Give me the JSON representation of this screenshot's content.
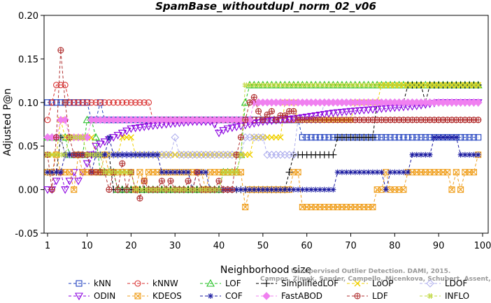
{
  "chart_data": {
    "type": "line",
    "title": "SpamBase_withoutdupl_norm_02_v06",
    "xlabel": "Neighborhood size",
    "ylabel": "Adjusted P@n",
    "xlim": [
      1,
      100
    ],
    "ylim": [
      -0.05,
      0.2
    ],
    "xticks": [
      "1",
      "10",
      "20",
      "30",
      "40",
      "50",
      "60",
      "70",
      "80",
      "90",
      "100"
    ],
    "yticks": [
      "-0.05",
      "0.00",
      "0.05",
      "0.10",
      "0.15",
      "0.20"
    ],
    "grid": false,
    "legend_position": "bottom",
    "watermark": [
      "Unsupervised Outlier Detection. DAMI, 2015.",
      "Campos, Zimek, Sander, Campello, Micenkova, Schubert, Assent, Houle"
    ],
    "series": [
      {
        "name": "kNN",
        "color": "#1f3fbf",
        "marker": "square",
        "points": [
          [
            1,
            0.1
          ],
          [
            10,
            0.1
          ],
          [
            11,
            0.08
          ],
          [
            12,
            0.08
          ],
          [
            13,
            0.1
          ],
          [
            14,
            0.08
          ],
          [
            58,
            0.08
          ],
          [
            59,
            0.06
          ],
          [
            99,
            0.06
          ]
        ]
      },
      {
        "name": "kNNW",
        "color": "#d93030",
        "marker": "circle",
        "points": [
          [
            1,
            0.08
          ],
          [
            2,
            0.1
          ],
          [
            3,
            0.12
          ],
          [
            4,
            0.12
          ],
          [
            5,
            0.12
          ],
          [
            6,
            0.1
          ],
          [
            24,
            0.1
          ],
          [
            25,
            0.08
          ],
          [
            99,
            0.08
          ]
        ]
      },
      {
        "name": "LOF",
        "color": "#22c022",
        "marker": "triangle-up",
        "points": [
          [
            1,
            0.06
          ],
          [
            5,
            0.06
          ],
          [
            6,
            0.04
          ],
          [
            9,
            0.04
          ],
          [
            10,
            0.08
          ],
          [
            12,
            0.06
          ],
          [
            13,
            0.02
          ],
          [
            16,
            0.02
          ],
          [
            17,
            0.0
          ],
          [
            40,
            0.0
          ],
          [
            41,
            0.02
          ],
          [
            44,
            0.02
          ],
          [
            45,
            0.04
          ],
          [
            46,
            0.1
          ],
          [
            47,
            0.12
          ],
          [
            99,
            0.12
          ]
        ]
      },
      {
        "name": "SimplifiedLOF",
        "color": "#000000",
        "marker": "plus",
        "points": [
          [
            1,
            0.02
          ],
          [
            3,
            0.02
          ],
          [
            4,
            0.06
          ],
          [
            5,
            0.04
          ],
          [
            15,
            0.04
          ],
          [
            16,
            0.0
          ],
          [
            55,
            0.0
          ],
          [
            56,
            0.02
          ],
          [
            57,
            0.04
          ],
          [
            66,
            0.04
          ],
          [
            67,
            0.06
          ],
          [
            68,
            0.06
          ],
          [
            75,
            0.06
          ],
          [
            76,
            0.1
          ],
          [
            82,
            0.1
          ],
          [
            83,
            0.12
          ],
          [
            86,
            0.12
          ],
          [
            87,
            0.1
          ],
          [
            88,
            0.12
          ],
          [
            99,
            0.12
          ]
        ]
      },
      {
        "name": "LoOP",
        "color": "#f0d000",
        "marker": "x",
        "points": [
          [
            1,
            0.04
          ],
          [
            3,
            0.04
          ],
          [
            4,
            0.08
          ],
          [
            5,
            0.06
          ],
          [
            11,
            0.06
          ],
          [
            12,
            0.04
          ],
          [
            17,
            0.04
          ],
          [
            18,
            0.06
          ],
          [
            20,
            0.06
          ],
          [
            21,
            0.04
          ],
          [
            47,
            0.04
          ],
          [
            48,
            0.06
          ],
          [
            54,
            0.06
          ],
          [
            55,
            0.1
          ],
          [
            57,
            0.1
          ],
          [
            58,
            0.08
          ],
          [
            70,
            0.08
          ],
          [
            71,
            0.1
          ],
          [
            76,
            0.1
          ],
          [
            77,
            0.12
          ],
          [
            99,
            0.12
          ]
        ]
      },
      {
        "name": "LDOF",
        "color": "#b0b0ee",
        "marker": "diamond",
        "points": [
          [
            1,
            0.06
          ],
          [
            4,
            0.06
          ],
          [
            5,
            0.04
          ],
          [
            29,
            0.04
          ],
          [
            30,
            0.06
          ],
          [
            31,
            0.04
          ],
          [
            45,
            0.04
          ],
          [
            46,
            0.06
          ],
          [
            50,
            0.06
          ],
          [
            51,
            0.04
          ],
          [
            57,
            0.04
          ],
          [
            58,
            0.08
          ],
          [
            63,
            0.08
          ],
          [
            64,
            0.1
          ],
          [
            99,
            0.1
          ]
        ]
      },
      {
        "name": "ODIN",
        "color": "#8b00e0",
        "marker": "triangle-down",
        "points": [
          [
            1,
            0.0
          ],
          [
            2,
            0.0
          ],
          [
            3,
            0.01
          ],
          [
            4,
            0.02
          ],
          [
            5,
            0.0
          ],
          [
            6,
            0.01
          ],
          [
            7,
            0.02
          ],
          [
            8,
            0.01
          ],
          [
            9,
            0.02
          ],
          [
            10,
            0.03
          ],
          [
            11,
            0.04
          ],
          [
            12,
            0.05
          ],
          [
            14,
            0.055
          ],
          [
            16,
            0.06
          ],
          [
            18,
            0.065
          ],
          [
            20,
            0.07
          ],
          [
            23,
            0.072
          ],
          [
            26,
            0.074
          ],
          [
            30,
            0.076
          ],
          [
            34,
            0.078
          ],
          [
            38,
            0.078
          ],
          [
            39,
            0.075
          ],
          [
            40,
            0.065
          ],
          [
            41,
            0.068
          ],
          [
            42,
            0.07
          ],
          [
            44,
            0.072
          ],
          [
            46,
            0.074
          ],
          [
            48,
            0.076
          ],
          [
            50,
            0.078
          ],
          [
            54,
            0.08
          ],
          [
            58,
            0.082
          ],
          [
            62,
            0.085
          ],
          [
            66,
            0.088
          ],
          [
            70,
            0.09
          ],
          [
            75,
            0.092
          ],
          [
            80,
            0.094
          ],
          [
            85,
            0.096
          ],
          [
            90,
            0.1
          ],
          [
            99,
            0.1
          ]
        ]
      },
      {
        "name": "KDEOS",
        "color": "#f0a020",
        "marker": "box-x",
        "points": [
          [
            1,
            0.02
          ],
          [
            2,
            0.02
          ],
          [
            3,
            0.04
          ],
          [
            4,
            0.02
          ],
          [
            6,
            0.02
          ],
          [
            7,
            0.0
          ],
          [
            8,
            0.04
          ],
          [
            9,
            0.02
          ],
          [
            12,
            0.02
          ],
          [
            13,
            0.02
          ],
          [
            14,
            0.04
          ],
          [
            15,
            0.02
          ],
          [
            20,
            0.02
          ],
          [
            21,
            0.0
          ],
          [
            22,
            0.02
          ],
          [
            23,
            0.01
          ],
          [
            24,
            0.02
          ],
          [
            36,
            0.02
          ],
          [
            37,
            0.0
          ],
          [
            38,
            0.02
          ],
          [
            45,
            0.02
          ],
          [
            46,
            -0.02
          ],
          [
            47,
            0.0
          ],
          [
            48,
            0.0
          ],
          [
            56,
            0.0
          ],
          [
            57,
            0.02
          ],
          [
            58,
            0.02
          ],
          [
            59,
            -0.02
          ],
          [
            75,
            -0.02
          ],
          [
            76,
            0.0
          ],
          [
            77,
            0.0
          ],
          [
            78,
            0.02
          ],
          [
            79,
            0.0
          ],
          [
            82,
            0.0
          ],
          [
            83,
            0.02
          ],
          [
            92,
            0.02
          ],
          [
            93,
            0.0
          ],
          [
            94,
            0.02
          ],
          [
            95,
            0.0
          ],
          [
            96,
            0.02
          ],
          [
            98,
            0.02
          ],
          [
            99,
            0.04
          ]
        ]
      },
      {
        "name": "COF",
        "color": "#1a1aa0",
        "marker": "asterisk",
        "points": [
          [
            1,
            0.02
          ],
          [
            4,
            0.02
          ],
          [
            5,
            0.04
          ],
          [
            10,
            0.04
          ],
          [
            11,
            0.02
          ],
          [
            12,
            0.04
          ],
          [
            14,
            0.04
          ],
          [
            15,
            0.06
          ],
          [
            16,
            0.04
          ],
          [
            26,
            0.04
          ],
          [
            27,
            0.02
          ],
          [
            33,
            0.02
          ],
          [
            34,
            0.0
          ],
          [
            35,
            0.02
          ],
          [
            37,
            0.02
          ],
          [
            38,
            0.0
          ],
          [
            66,
            0.0
          ],
          [
            67,
            0.02
          ],
          [
            77,
            0.02
          ],
          [
            78,
            0.0
          ],
          [
            79,
            0.02
          ],
          [
            83,
            0.02
          ],
          [
            84,
            0.04
          ],
          [
            88,
            0.04
          ],
          [
            89,
            0.06
          ],
          [
            94,
            0.06
          ],
          [
            95,
            0.04
          ],
          [
            99,
            0.04
          ]
        ]
      },
      {
        "name": "FastABOD",
        "color": "#f080f0",
        "marker": "diamond-filled",
        "points": [
          [
            1,
            0.06
          ],
          [
            3,
            0.06
          ],
          [
            4,
            0.08
          ],
          [
            5,
            0.08
          ],
          [
            6,
            0.06
          ],
          [
            10,
            0.06
          ],
          [
            11,
            0.08
          ],
          [
            47,
            0.08
          ],
          [
            48,
            0.1
          ],
          [
            99,
            0.1
          ]
        ]
      },
      {
        "name": "LDF",
        "color": "#b03030",
        "marker": "circle-plus",
        "points": [
          [
            1,
            0.04
          ],
          [
            2,
            0.0
          ],
          [
            3,
            0.06
          ],
          [
            4,
            0.16
          ],
          [
            5,
            0.1
          ],
          [
            6,
            0.06
          ],
          [
            7,
            0.04
          ],
          [
            10,
            0.04
          ],
          [
            11,
            0.02
          ],
          [
            14,
            0.02
          ],
          [
            15,
            0.0
          ],
          [
            16,
            0.02
          ],
          [
            17,
            0.0
          ],
          [
            18,
            0.03
          ],
          [
            19,
            0.0
          ],
          [
            20,
            0.02
          ],
          [
            21,
            0.0
          ],
          [
            22,
            -0.01
          ],
          [
            23,
            0.01
          ],
          [
            24,
            0.0
          ],
          [
            25,
            0.0
          ],
          [
            26,
            0.0
          ],
          [
            27,
            0.01
          ],
          [
            28,
            0.0
          ],
          [
            29,
            0.01
          ],
          [
            30,
            0.0
          ],
          [
            31,
            0.0
          ],
          [
            32,
            0.0
          ],
          [
            33,
            0.01
          ],
          [
            34,
            0.0
          ],
          [
            35,
            0.02
          ],
          [
            36,
            0.0
          ],
          [
            37,
            0.0
          ],
          [
            38,
            0.0
          ],
          [
            39,
            0.0
          ],
          [
            40,
            0.01
          ],
          [
            41,
            0.0
          ],
          [
            42,
            0.0
          ],
          [
            43,
            0.0
          ],
          [
            44,
            0.04
          ],
          [
            45,
            0.06
          ],
          [
            46,
            0.08
          ],
          [
            47,
            0.1
          ],
          [
            48,
            0.106
          ],
          [
            49,
            0.09
          ],
          [
            50,
            0.08
          ],
          [
            51,
            0.086
          ],
          [
            52,
            0.09
          ],
          [
            53,
            0.08
          ],
          [
            54,
            0.085
          ],
          [
            55,
            0.085
          ],
          [
            56,
            0.09
          ],
          [
            57,
            0.09
          ],
          [
            58,
            0.08
          ],
          [
            99,
            0.08
          ]
        ]
      },
      {
        "name": "INFLO",
        "color": "#c0d840",
        "marker": "hash",
        "points": [
          [
            1,
            0.04
          ],
          [
            5,
            0.04
          ],
          [
            6,
            0.06
          ],
          [
            9,
            0.06
          ],
          [
            10,
            0.04
          ],
          [
            13,
            0.04
          ],
          [
            14,
            0.02
          ],
          [
            20,
            0.02
          ],
          [
            21,
            0.0
          ],
          [
            40,
            0.0
          ],
          [
            41,
            0.02
          ],
          [
            44,
            0.02
          ],
          [
            45,
            0.04
          ],
          [
            46,
            0.12
          ],
          [
            99,
            0.12
          ]
        ]
      }
    ]
  }
}
